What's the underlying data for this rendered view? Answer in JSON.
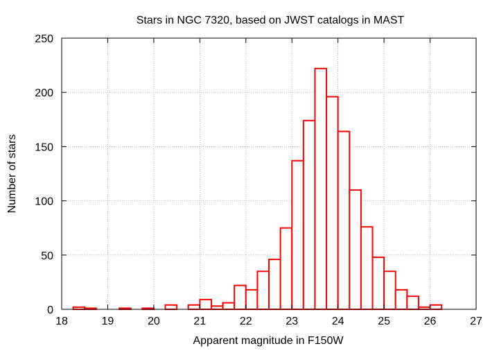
{
  "chart_data": {
    "type": "bar",
    "title": "Stars in NGC 7320, based on JWST catalogs in MAST",
    "xlabel": "Apparent magnitude in F150W",
    "ylabel": "Number of stars",
    "xlim": [
      18,
      27
    ],
    "ylim": [
      0,
      250
    ],
    "xticks": [
      "18",
      "19",
      "20",
      "21",
      "22",
      "23",
      "24",
      "25",
      "26",
      "27"
    ],
    "yticks": [
      "0",
      "50",
      "100",
      "150",
      "200",
      "250"
    ],
    "grid": true,
    "bin_width": 0.25,
    "bar_color": "#ff0000",
    "bins": [
      {
        "x": 18.375,
        "y": 2
      },
      {
        "x": 18.625,
        "y": 1
      },
      {
        "x": 19.375,
        "y": 1
      },
      {
        "x": 19.875,
        "y": 1
      },
      {
        "x": 20.375,
        "y": 4
      },
      {
        "x": 20.875,
        "y": 4
      },
      {
        "x": 21.125,
        "y": 9
      },
      {
        "x": 21.375,
        "y": 3
      },
      {
        "x": 21.625,
        "y": 6
      },
      {
        "x": 21.875,
        "y": 22
      },
      {
        "x": 22.125,
        "y": 18
      },
      {
        "x": 22.375,
        "y": 35
      },
      {
        "x": 22.625,
        "y": 46
      },
      {
        "x": 22.875,
        "y": 75
      },
      {
        "x": 23.125,
        "y": 137
      },
      {
        "x": 23.375,
        "y": 174
      },
      {
        "x": 23.625,
        "y": 222
      },
      {
        "x": 23.875,
        "y": 196
      },
      {
        "x": 24.125,
        "y": 164
      },
      {
        "x": 24.375,
        "y": 110
      },
      {
        "x": 24.625,
        "y": 76
      },
      {
        "x": 24.875,
        "y": 48
      },
      {
        "x": 25.125,
        "y": 35
      },
      {
        "x": 25.375,
        "y": 18
      },
      {
        "x": 25.625,
        "y": 12
      },
      {
        "x": 25.875,
        "y": 2
      },
      {
        "x": 26.125,
        "y": 4
      }
    ]
  }
}
